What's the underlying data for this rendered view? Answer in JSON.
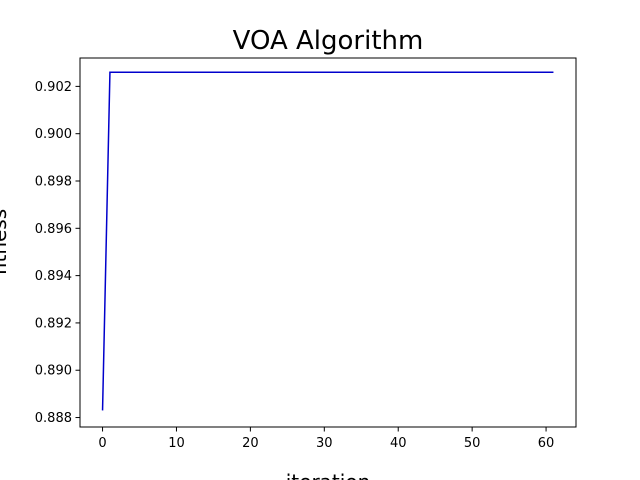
{
  "chart_data": {
    "type": "line",
    "title": "VOA Algorithm",
    "xlabel": "iteration",
    "ylabel": "fitness",
    "xlim": [
      -3.05,
      64.05
    ],
    "ylim": [
      0.8876,
      0.9032
    ],
    "xticks": [
      0,
      10,
      20,
      30,
      40,
      50,
      60
    ],
    "yticks": [
      0.888,
      0.89,
      0.892,
      0.894,
      0.896,
      0.898,
      0.9,
      0.902
    ],
    "ytick_format_decimals": 3,
    "grid": false,
    "legend": "none",
    "series": [
      {
        "color": "#0000cc",
        "x": [
          0,
          1,
          61
        ],
        "y": [
          0.8883,
          0.9026,
          0.9026
        ]
      }
    ]
  }
}
